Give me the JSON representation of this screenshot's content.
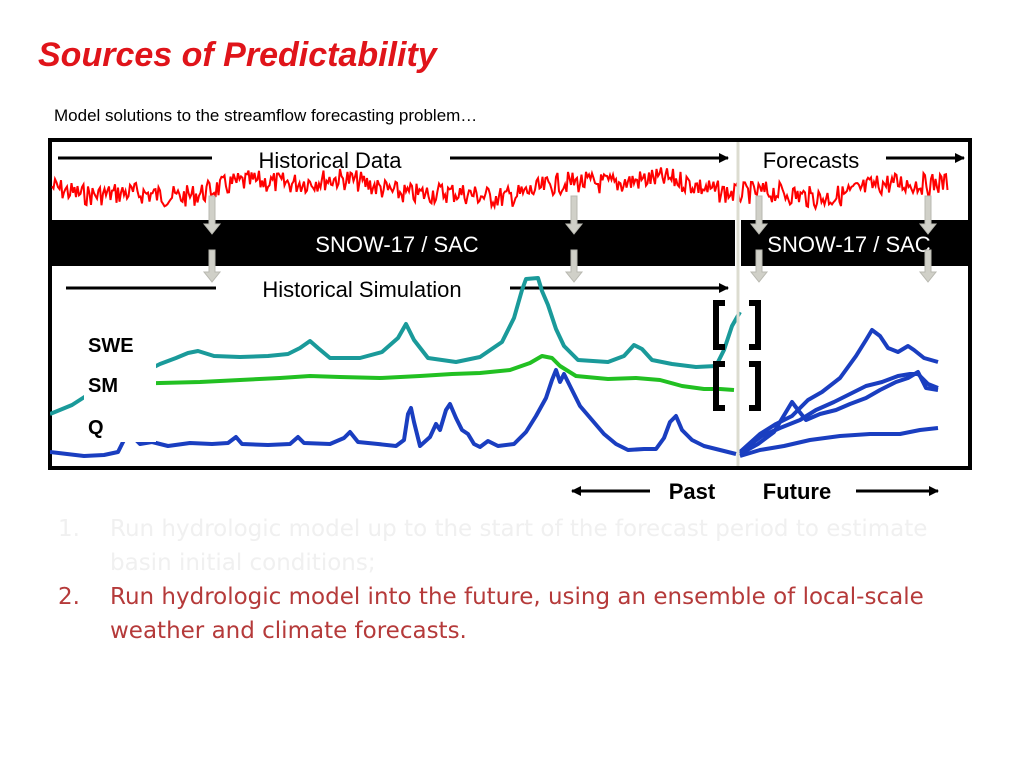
{
  "title": "Sources of Predictability",
  "subtitle": "Model solutions to the streamflow forecasting problem…",
  "diagram": {
    "historical_data_label": "Historical Data",
    "forecasts_label": "Forecasts",
    "model_label_past": "SNOW-17 / SAC",
    "model_label_future": "SNOW-17 / SAC",
    "historical_simulation_label": "Historical Simulation",
    "series_labels": {
      "swe": "SWE",
      "sm": "SM",
      "q": "Q"
    },
    "past_label": "Past",
    "future_label": "Future"
  },
  "steps": [
    {
      "number": "1.",
      "text": "Run hydrologic model up to the start of the forecast period to estimate basin initial conditions;"
    },
    {
      "number": "2.",
      "text": "Run hydrologic model into the future, using an ensemble of local-scale weather and climate forecasts."
    }
  ],
  "colors": {
    "title": "#e0141a",
    "forcing": "#ff0000",
    "swe": "#1a9a9a",
    "sm": "#22c022",
    "q": "#1a3ec0",
    "step1": "#f0f0f0",
    "step2": "#b53a3a"
  }
}
